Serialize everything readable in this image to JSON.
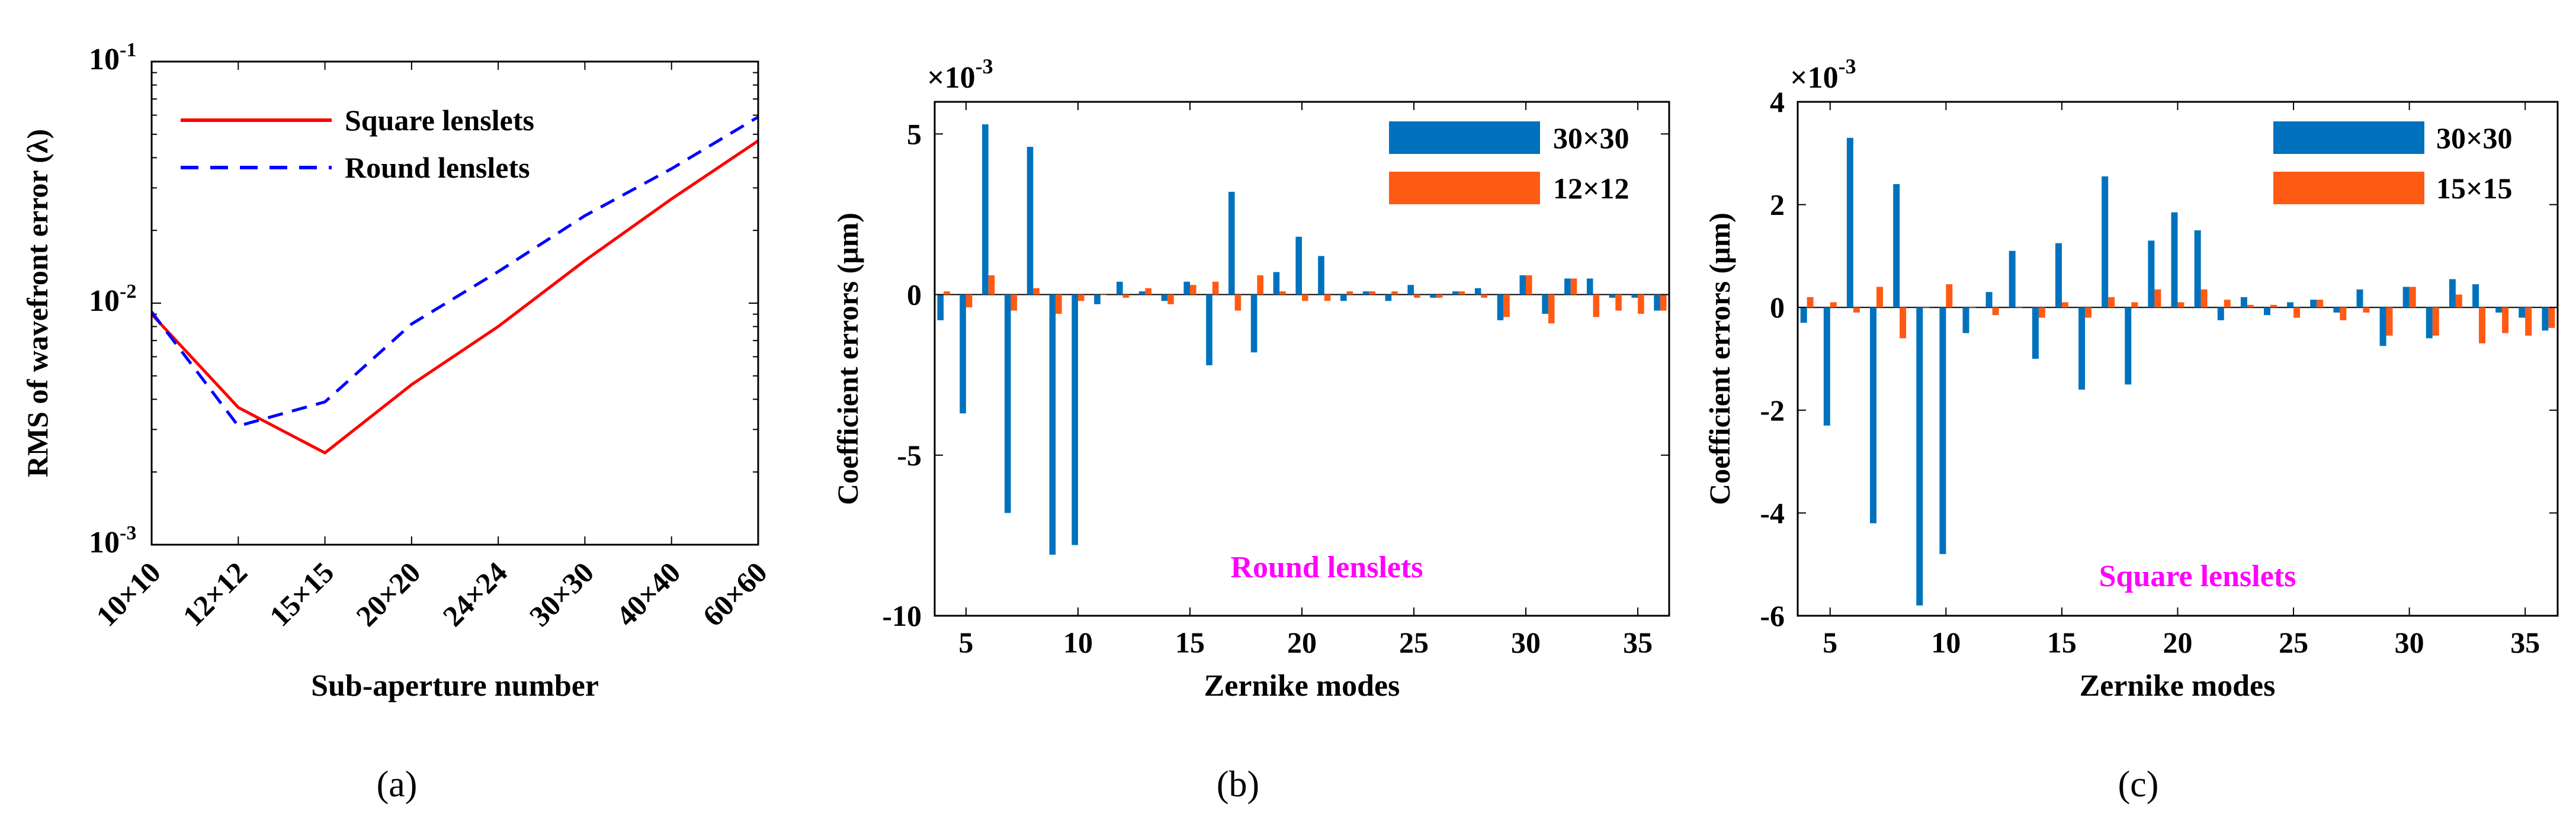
{
  "chart_data": [
    {
      "type": "line",
      "panel_label": "(a)",
      "xlabel": "Sub-aperture number",
      "ylabel": "RMS of wavefront error (λ)",
      "categories": [
        "10×10",
        "12×12",
        "15×15",
        "20×20",
        "24×24",
        "30×30",
        "40×40",
        "60×60"
      ],
      "yscale": "log",
      "ylim": [
        0.001,
        0.1
      ],
      "ytick_labels": [
        "10",
        "10",
        "10"
      ],
      "ytick_exponents": [
        "-3",
        "-2",
        "-1"
      ],
      "legend_position": "top-left",
      "series": [
        {
          "name": "Square lenslets",
          "color": "#ff0000",
          "dash": "solid",
          "values": [
            0.009,
            0.0037,
            0.0024,
            0.0046,
            0.008,
            0.015,
            0.027,
            0.047
          ]
        },
        {
          "name": "Round lenslets",
          "color": "#0000ff",
          "dash": "dashed",
          "values": [
            0.0092,
            0.0031,
            0.0039,
            0.0082,
            0.0135,
            0.023,
            0.036,
            0.059
          ]
        }
      ]
    },
    {
      "type": "bar",
      "panel_label": "(b)",
      "title": "×10",
      "title_exponent": "-3",
      "xlabel": "Zernike modes",
      "ylabel": "Coefficient errors (μm)",
      "annotation": "Round lenslets",
      "annotation_color": "#ff00ff",
      "xlim": [
        3.6,
        36.4
      ],
      "ylim": [
        -10,
        6
      ],
      "xticks": [
        5,
        10,
        15,
        20,
        25,
        30,
        35
      ],
      "yticks": [
        -10,
        -5,
        0,
        5
      ],
      "legend_position": "top-right",
      "categories": [
        4,
        5,
        6,
        7,
        8,
        9,
        10,
        11,
        12,
        13,
        14,
        15,
        16,
        17,
        18,
        19,
        20,
        21,
        22,
        23,
        24,
        25,
        26,
        27,
        28,
        29,
        30,
        31,
        32,
        33,
        34,
        35,
        36
      ],
      "series": [
        {
          "name": "30×30",
          "color": "#0072bd",
          "values": [
            -0.8,
            -3.7,
            5.3,
            -6.8,
            4.6,
            -8.1,
            -7.8,
            -0.3,
            0.4,
            0.1,
            -0.2,
            0.4,
            -2.2,
            3.2,
            -1.8,
            0.7,
            1.8,
            1.2,
            -0.2,
            0.1,
            -0.2,
            0.3,
            -0.1,
            0.1,
            0.2,
            -0.8,
            0.6,
            -0.6,
            0.5,
            0.5,
            -0.1,
            -0.1,
            -0.5
          ]
        },
        {
          "name": "12×12",
          "color": "#ff5a14",
          "values": [
            0.1,
            -0.4,
            0.6,
            -0.5,
            0.2,
            -0.6,
            -0.2,
            0.0,
            -0.1,
            0.2,
            -0.3,
            0.3,
            0.4,
            -0.5,
            0.6,
            0.1,
            -0.2,
            -0.2,
            0.1,
            0.1,
            0.1,
            -0.1,
            -0.1,
            0.1,
            -0.1,
            -0.7,
            0.6,
            -0.9,
            0.5,
            -0.7,
            -0.5,
            -0.6,
            -0.5
          ]
        }
      ]
    },
    {
      "type": "bar",
      "panel_label": "(c)",
      "title": "×10",
      "title_exponent": "-3",
      "xlabel": "Zernike modes",
      "ylabel": "Coefficient errors (μm)",
      "annotation": "Square lenslets",
      "annotation_color": "#ff00ff",
      "xlim": [
        3.6,
        36.4
      ],
      "ylim": [
        -6,
        4
      ],
      "xticks": [
        5,
        10,
        15,
        20,
        25,
        30,
        35
      ],
      "yticks": [
        -6,
        -4,
        -2,
        0,
        2,
        4
      ],
      "legend_position": "top-right",
      "categories": [
        4,
        5,
        6,
        7,
        8,
        9,
        10,
        11,
        12,
        13,
        14,
        15,
        16,
        17,
        18,
        19,
        20,
        21,
        22,
        23,
        24,
        25,
        26,
        27,
        28,
        29,
        30,
        31,
        32,
        33,
        34,
        35,
        36
      ],
      "series": [
        {
          "name": "30×30",
          "color": "#0072bd",
          "values": [
            -0.3,
            -2.3,
            3.3,
            -4.2,
            2.4,
            -5.8,
            -4.8,
            -0.5,
            0.3,
            1.1,
            -1.0,
            1.25,
            -1.6,
            2.55,
            -1.5,
            1.3,
            1.85,
            1.5,
            -0.25,
            0.2,
            -0.15,
            0.1,
            0.15,
            -0.1,
            0.35,
            -0.75,
            0.4,
            -0.6,
            0.55,
            0.45,
            -0.1,
            -0.2,
            -0.45
          ]
        },
        {
          "name": "15×15",
          "color": "#ff5a14",
          "values": [
            0.2,
            0.1,
            -0.1,
            0.4,
            -0.6,
            0.0,
            0.45,
            0.0,
            -0.15,
            0.0,
            -0.2,
            0.1,
            -0.2,
            0.2,
            0.1,
            0.35,
            0.1,
            0.35,
            0.15,
            0.05,
            0.05,
            -0.2,
            0.15,
            -0.25,
            -0.1,
            -0.55,
            0.4,
            -0.55,
            0.25,
            -0.7,
            -0.5,
            -0.55,
            -0.4
          ]
        }
      ]
    }
  ]
}
